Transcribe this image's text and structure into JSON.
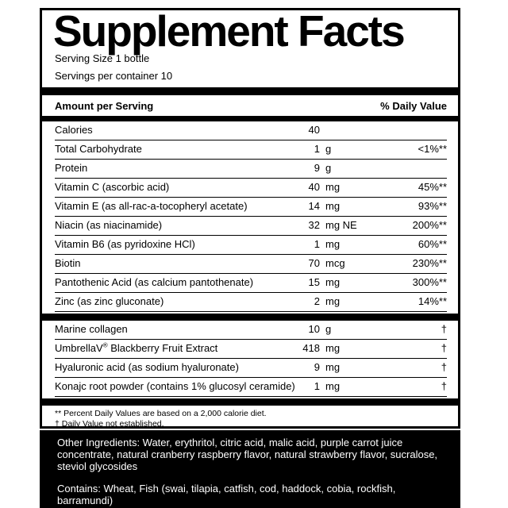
{
  "label": {
    "title": "Supplement Facts",
    "serving_size": "Serving Size 1 bottle",
    "servings_per_container": "Servings per container 10",
    "header": {
      "amount_per_serving": "Amount per Serving",
      "percent_daily_value": "% Daily Value"
    },
    "rows": [
      {
        "name": "Calories",
        "amount": "40",
        "unit": "",
        "dv": ""
      },
      {
        "name": "Total Carbohydrate",
        "amount": "1",
        "unit": "g",
        "dv": "<1%**"
      },
      {
        "name": "Protein",
        "amount": "9",
        "unit": "g",
        "dv": ""
      },
      {
        "name": "Vitamin C (ascorbic acid)",
        "amount": "40",
        "unit": "mg",
        "dv": "45%**"
      },
      {
        "name": "Vitamin E (as all-rac-a-tocopheryl acetate)",
        "amount": "14",
        "unit": "mg",
        "dv": "93%**"
      },
      {
        "name": "Niacin (as niacinamide)",
        "amount": "32",
        "unit": "mg NE",
        "dv": "200%**"
      },
      {
        "name": "Vitamin B6 (as pyridoxine HCl)",
        "amount": "1",
        "unit": "mg",
        "dv": "60%**"
      },
      {
        "name": "Biotin",
        "amount": "70",
        "unit": "mcg",
        "dv": "230%**"
      },
      {
        "name": "Pantothenic Acid (as calcium pantothenate)",
        "amount": "15",
        "unit": "mg",
        "dv": "300%**"
      },
      {
        "name": "Zinc (as zinc gluconate)",
        "amount": "2",
        "unit": "mg",
        "dv": "14%**"
      }
    ],
    "rows2": [
      {
        "name": "Marine collagen",
        "amount": "10",
        "unit": "g",
        "dv": "†"
      },
      {
        "name": "UmbrellaV® Blackberry Fruit Extract",
        "amount": "418",
        "unit": "mg",
        "dv": "†"
      },
      {
        "name": "Hyaluronic acid (as sodium hyaluronate)",
        "amount": "9",
        "unit": "mg",
        "dv": "†"
      },
      {
        "name": "Konajc root powder (contains 1% glucosyl ceramide)",
        "amount": "1",
        "unit": "mg",
        "dv": "†"
      }
    ],
    "footnotes": {
      "daily_value_note": "** Percent Daily Values are based on a 2,000 calorie diet.",
      "dagger_note": "† Daily Value not established."
    }
  },
  "panel": {
    "other_ingredients": "Other Ingredients: Water, erythritol, citric acid, malic acid, purple carrot juice concentrate, natural cranberry raspberry flavor, natural strawberry flavor, sucralose, steviol glycosides",
    "contains": "Contains: Wheat, Fish (swai, tilapia, catfish, cod, haddock, cobia, rockfish, barramundi)"
  },
  "colors": {
    "ink": "#000000",
    "paper": "#ffffff",
    "panel_bg": "#000000",
    "panel_text": "#ffffff"
  }
}
